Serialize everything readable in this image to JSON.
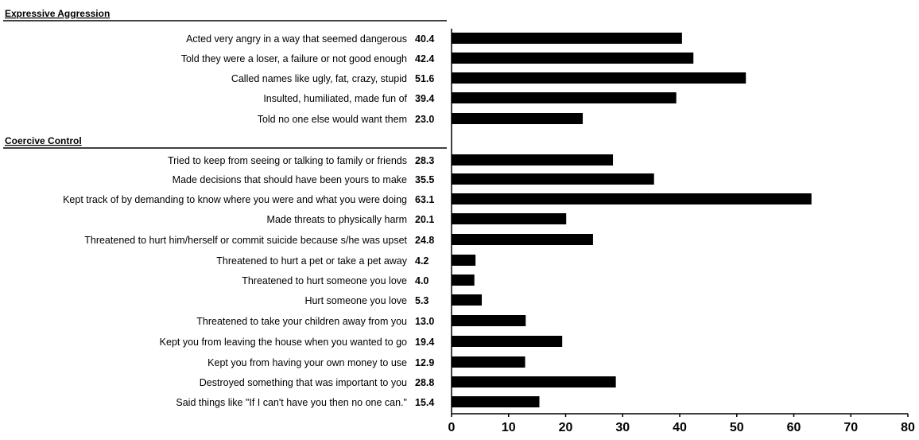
{
  "chart_data": {
    "type": "bar",
    "orientation": "horizontal",
    "bar_color": "#000000",
    "grid": false,
    "xlim": [
      0,
      80
    ],
    "xticks": [
      0,
      10,
      20,
      30,
      40,
      50,
      60,
      70,
      80
    ],
    "groups": [
      {
        "name": "Expressive Aggression",
        "items": [
          {
            "label": "Acted very angry in a way that seemed dangerous",
            "value": 40.4,
            "value_text": "40.4"
          },
          {
            "label": "Told they were a loser, a failure or not good enough",
            "value": 42.4,
            "value_text": "42.4"
          },
          {
            "label": "Called names like ugly, fat, crazy, stupid",
            "value": 51.6,
            "value_text": "51.6"
          },
          {
            "label": "Insulted, humiliated, made fun of",
            "value": 39.4,
            "value_text": "39.4"
          },
          {
            "label": "Told no one else would want them",
            "value": 23.0,
            "value_text": "23.0"
          }
        ]
      },
      {
        "name": "Coercive Control",
        "items": [
          {
            "label": "Tried to keep from seeing or talking to family or friends",
            "value": 28.3,
            "value_text": "28.3"
          },
          {
            "label": "Made decisions that should have been yours to make",
            "value": 35.5,
            "value_text": "35.5"
          },
          {
            "label": "Kept track of by demanding to know where you were and what you were doing",
            "value": 63.1,
            "value_text": "63.1"
          },
          {
            "label": "Made threats to physically harm",
            "value": 20.1,
            "value_text": "20.1"
          },
          {
            "label": "Threatened to hurt him/herself or commit suicide because s/he was upset",
            "value": 24.8,
            "value_text": "24.8"
          },
          {
            "label": "Threatened to hurt a pet or take a pet away",
            "value": 4.2,
            "value_text": "4.2"
          },
          {
            "label": "Threatened to hurt someone you love",
            "value": 4.0,
            "value_text": "4.0"
          },
          {
            "label": "Hurt someone you love",
            "value": 5.3,
            "value_text": "5.3"
          },
          {
            "label": "Threatened to take your children away from you",
            "value": 13.0,
            "value_text": "13.0"
          },
          {
            "label": "Kept you from leaving the house when you wanted to go",
            "value": 19.4,
            "value_text": "19.4"
          },
          {
            "label": "Kept you from having your own money to use",
            "value": 12.9,
            "value_text": "12.9"
          },
          {
            "label": "Destroyed something that was important to you",
            "value": 28.8,
            "value_text": "28.8"
          },
          {
            "label": "Said things like \"If I can't have you then no one can.\"",
            "value": 15.4,
            "value_text": "15.4"
          }
        ]
      }
    ]
  }
}
